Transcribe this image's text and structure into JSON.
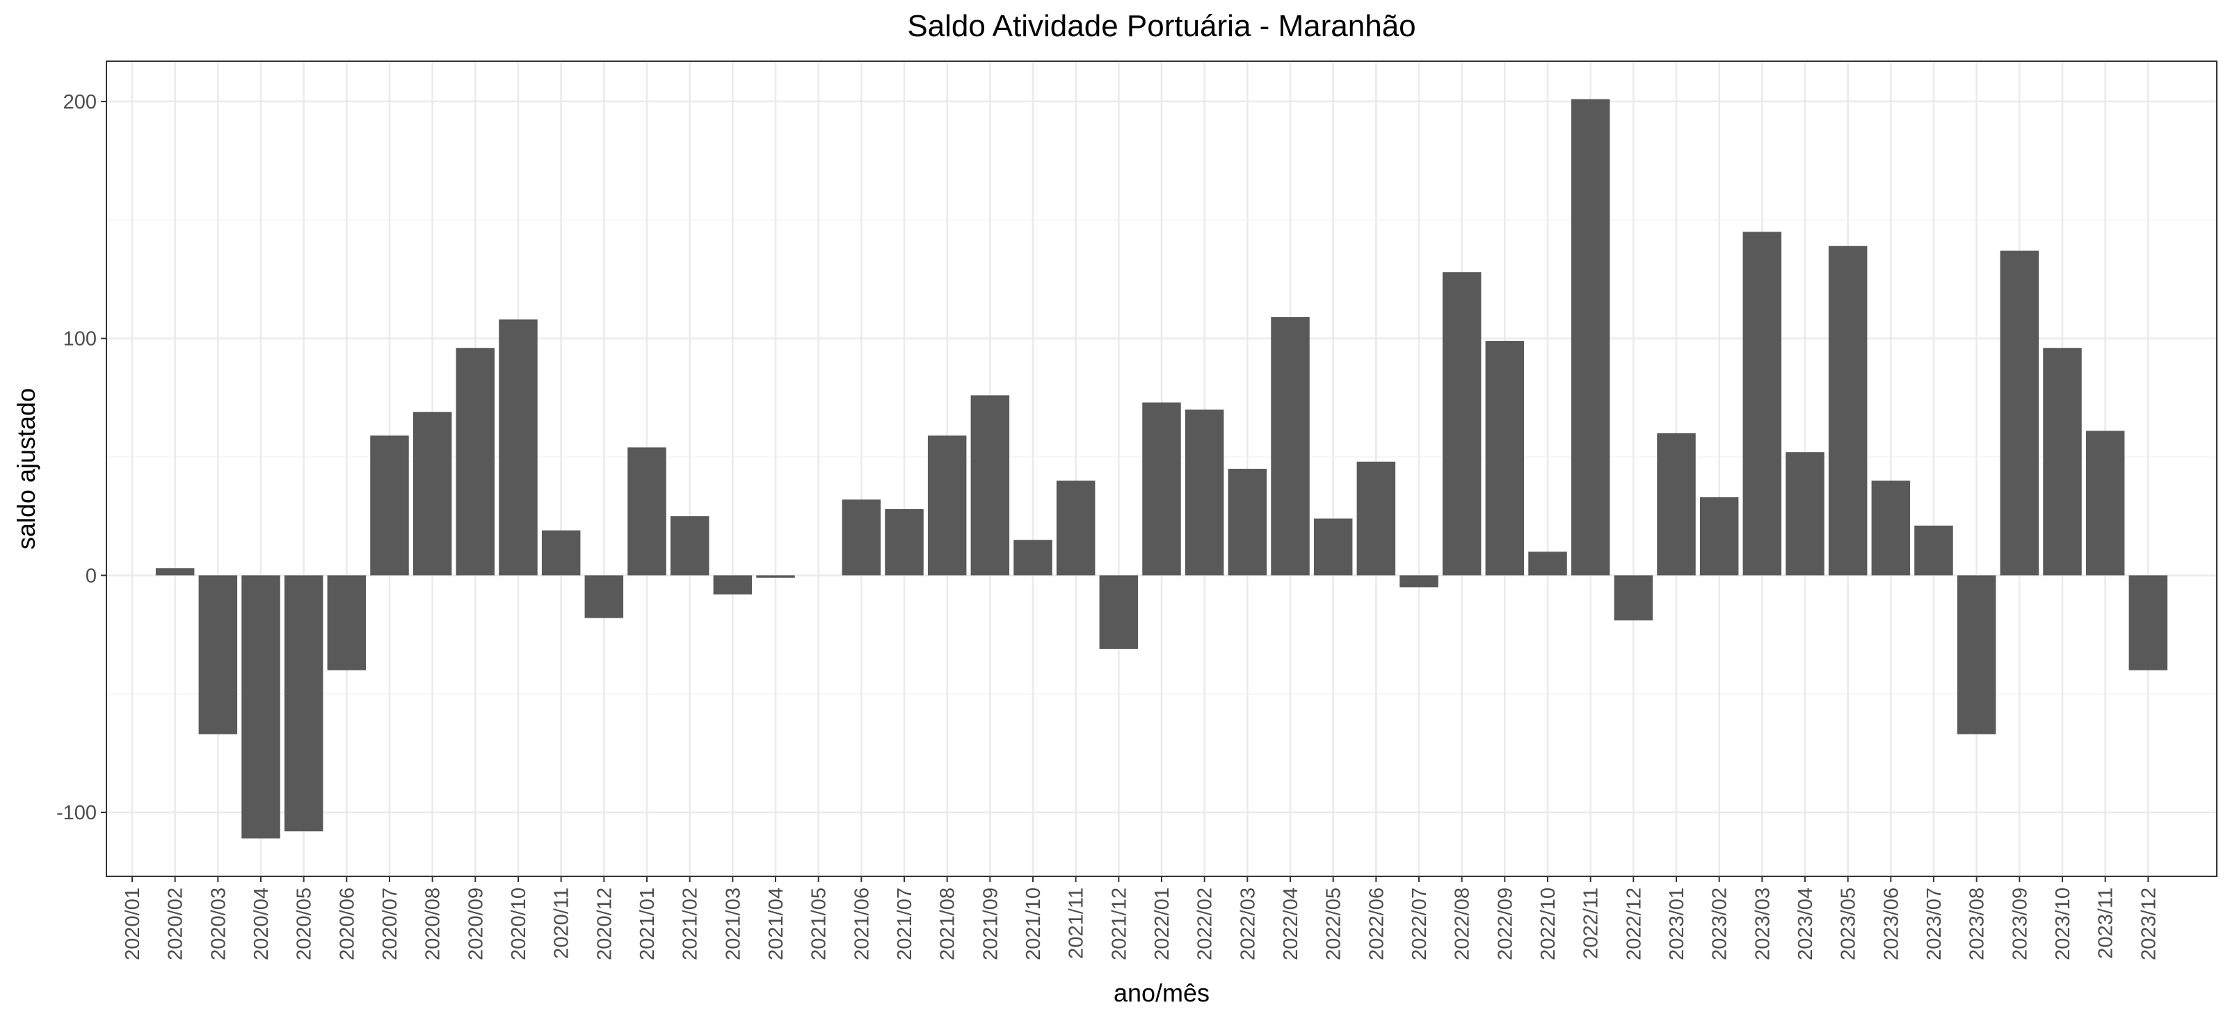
{
  "chart_data": {
    "type": "bar",
    "title": "Saldo Atividade Portuária - Maranhão",
    "xlabel": "ano/mês",
    "ylabel": "saldo ajustado",
    "ylim": [
      -127,
      217
    ],
    "yticks": [
      -100,
      0,
      100,
      200
    ],
    "grid": true,
    "legend": "none",
    "bar_color": "#595959",
    "categories": [
      "2020/01",
      "2020/02",
      "2020/03",
      "2020/04",
      "2020/05",
      "2020/06",
      "2020/07",
      "2020/08",
      "2020/09",
      "2020/10",
      "2020/11",
      "2020/12",
      "2021/01",
      "2021/02",
      "2021/03",
      "2021/04",
      "2021/05",
      "2021/06",
      "2021/07",
      "2021/08",
      "2021/09",
      "2021/10",
      "2021/11",
      "2021/12",
      "2022/01",
      "2022/02",
      "2022/03",
      "2022/04",
      "2022/05",
      "2022/06",
      "2022/07",
      "2022/08",
      "2022/09",
      "2022/10",
      "2022/11",
      "2022/12",
      "2023/01",
      "2023/02",
      "2023/03",
      "2023/04",
      "2023/05",
      "2023/06",
      "2023/07",
      "2023/08",
      "2023/09",
      "2023/10",
      "2023/11",
      "2023/12"
    ],
    "values": [
      0,
      3,
      -67,
      -111,
      -108,
      -40,
      59,
      69,
      96,
      108,
      19,
      -18,
      54,
      25,
      -8,
      -1,
      0,
      32,
      28,
      59,
      76,
      15,
      40,
      -31,
      73,
      70,
      45,
      109,
      24,
      48,
      -5,
      128,
      99,
      10,
      201,
      -19,
      60,
      33,
      145,
      52,
      139,
      40,
      21,
      -67,
      137,
      96,
      61,
      -40
    ]
  }
}
